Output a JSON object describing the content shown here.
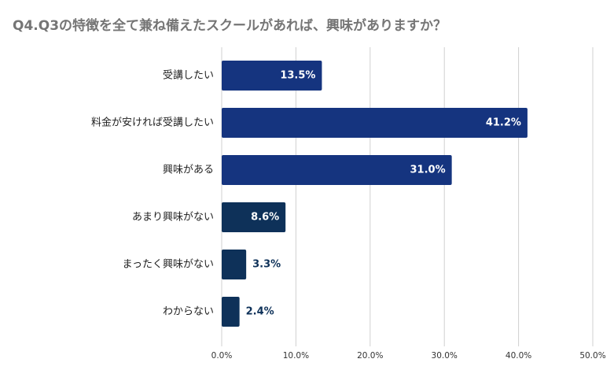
{
  "chart_data": {
    "type": "bar",
    "orientation": "horizontal",
    "title": "Q4.Q3の特徴を全て兼ね備えたスクールがあれば、興味がありますか？",
    "categories": [
      "受講したい",
      "料金が安ければ受講したい",
      "興味がある",
      "あまり興味がない",
      "まったく興味がない",
      "わからない"
    ],
    "values": [
      13.5,
      41.2,
      31.0,
      8.6,
      3.3,
      2.4
    ],
    "value_labels": [
      "13.5%",
      "41.2%",
      "31.0%",
      "8.6%",
      "3.3%",
      "2.4%"
    ],
    "bar_colors": [
      "#15347f",
      "#15347f",
      "#15347f",
      "#0e3159",
      "#0e3159",
      "#0e3159"
    ],
    "xlim": [
      0,
      50
    ],
    "xticks": [
      0,
      10,
      20,
      30,
      40,
      50
    ],
    "xtick_labels": [
      "0.0%",
      "10.0%",
      "20.0%",
      "30.0%",
      "40.0%",
      "50.0%"
    ],
    "xlabel": "",
    "ylabel": "",
    "grid": true,
    "legend": "none"
  },
  "colors": {
    "title": "#757575",
    "grid": "#d0d0d0",
    "label_inside": "#ffffff",
    "label_outside": "#0e3159"
  }
}
